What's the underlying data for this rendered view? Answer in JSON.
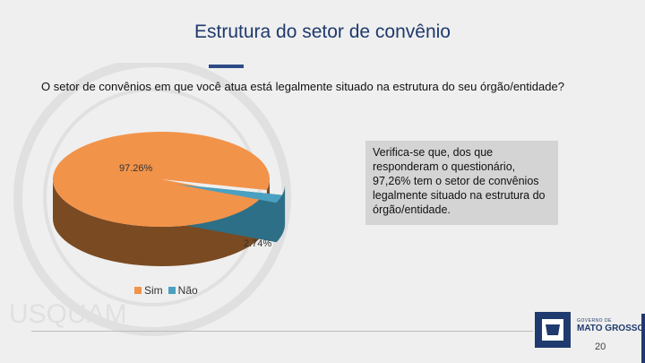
{
  "slide": {
    "title": "Estrutura do setor de convênio",
    "question": "O setor de convênios em que você atua está legalmente situado na estrutura do seu órgão/entidade?",
    "callout": "Verifica-se que, dos que responderam o questionário, 97,26% tem o setor de convênios legalmente situado na estrutura do órgão/entidade.",
    "page_number": "20",
    "brand_small": "GOVERNO DE",
    "brand_big": "MATO GROSSO",
    "watermark_text": "USQUAM"
  },
  "chart_data": {
    "type": "pie",
    "title": "",
    "categories": [
      "Sim",
      "Não"
    ],
    "values": [
      97.26,
      2.74
    ],
    "data_labels": [
      "97.26%",
      "2.74%"
    ],
    "colors": [
      "#f2934a",
      "#4aa0c0"
    ],
    "side_colors": [
      "#7a4a22",
      "#2d6f86"
    ],
    "style": "3d-exploded",
    "legend_position": "bottom-left"
  }
}
